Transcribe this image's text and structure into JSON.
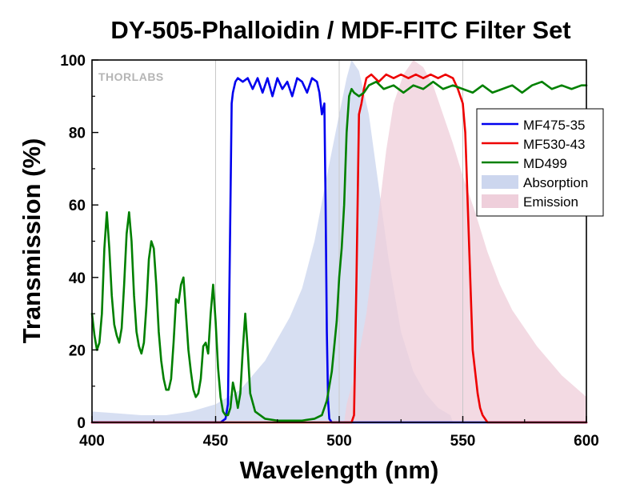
{
  "chart_data": {
    "type": "line",
    "title": "DY-505-Phalloidin / MDF-FITC Filter Set",
    "xlabel": "Wavelength (nm)",
    "ylabel": "Transmission (%)",
    "xlim": [
      400,
      600
    ],
    "ylim": [
      0,
      100
    ],
    "xticks": [
      400,
      450,
      500,
      550,
      600
    ],
    "yticks": [
      0,
      20,
      40,
      60,
      80,
      100
    ],
    "grid": true,
    "legend_position": "right",
    "watermark": "THORLABS",
    "colors": {
      "MF475-35": "#0000ee",
      "MF530-43": "#ee0000",
      "MD499": "#008000",
      "Absorption": "#ccd6ee",
      "Emission": "#efcfdb"
    },
    "series": [
      {
        "name": "MF475-35",
        "kind": "line",
        "points": [
          [
            400,
            0
          ],
          [
            452,
            0
          ],
          [
            454,
            1
          ],
          [
            455,
            5
          ],
          [
            456,
            60
          ],
          [
            456.5,
            88
          ],
          [
            457,
            91
          ],
          [
            458,
            94
          ],
          [
            459,
            95
          ],
          [
            461,
            94
          ],
          [
            463,
            95
          ],
          [
            465,
            92
          ],
          [
            467,
            95
          ],
          [
            469,
            91
          ],
          [
            471,
            95
          ],
          [
            473,
            90
          ],
          [
            475,
            95
          ],
          [
            477,
            92
          ],
          [
            479,
            94
          ],
          [
            481,
            90
          ],
          [
            483,
            95
          ],
          [
            485,
            94
          ],
          [
            487,
            91
          ],
          [
            489,
            95
          ],
          [
            491,
            94
          ],
          [
            492,
            91
          ],
          [
            493,
            85
          ],
          [
            494,
            88
          ],
          [
            494.5,
            60
          ],
          [
            495,
            25
          ],
          [
            495.5,
            6
          ],
          [
            496,
            1
          ],
          [
            497,
            0
          ],
          [
            600,
            0
          ]
        ]
      },
      {
        "name": "MF530-43",
        "kind": "line",
        "points": [
          [
            400,
            0
          ],
          [
            505,
            0
          ],
          [
            506,
            2
          ],
          [
            507,
            40
          ],
          [
            508,
            85
          ],
          [
            509,
            88
          ],
          [
            510,
            92
          ],
          [
            511,
            95
          ],
          [
            513,
            96
          ],
          [
            516,
            94
          ],
          [
            519,
            96
          ],
          [
            522,
            95
          ],
          [
            525,
            96
          ],
          [
            528,
            95
          ],
          [
            531,
            96
          ],
          [
            534,
            95
          ],
          [
            537,
            96
          ],
          [
            540,
            95
          ],
          [
            543,
            96
          ],
          [
            546,
            95
          ],
          [
            548,
            92
          ],
          [
            550,
            88
          ],
          [
            551,
            80
          ],
          [
            552,
            60
          ],
          [
            553,
            40
          ],
          [
            554,
            20
          ],
          [
            556,
            8
          ],
          [
            557,
            4
          ],
          [
            558,
            2
          ],
          [
            560,
            0
          ],
          [
            600,
            0
          ]
        ]
      },
      {
        "name": "MD499",
        "kind": "line",
        "points": [
          [
            400,
            30
          ],
          [
            401,
            24
          ],
          [
            402,
            20
          ],
          [
            403,
            22
          ],
          [
            404,
            30
          ],
          [
            405,
            48
          ],
          [
            406,
            58
          ],
          [
            407,
            48
          ],
          [
            408,
            35
          ],
          [
            409,
            27
          ],
          [
            410,
            24
          ],
          [
            411,
            22
          ],
          [
            412,
            26
          ],
          [
            413,
            38
          ],
          [
            414,
            52
          ],
          [
            415,
            58
          ],
          [
            416,
            50
          ],
          [
            417,
            35
          ],
          [
            418,
            25
          ],
          [
            419,
            21
          ],
          [
            420,
            19
          ],
          [
            421,
            22
          ],
          [
            422,
            32
          ],
          [
            423,
            45
          ],
          [
            424,
            50
          ],
          [
            425,
            48
          ],
          [
            426,
            38
          ],
          [
            427,
            25
          ],
          [
            428,
            17
          ],
          [
            429,
            12
          ],
          [
            430,
            9
          ],
          [
            431,
            9
          ],
          [
            432,
            12
          ],
          [
            433,
            22
          ],
          [
            434,
            34
          ],
          [
            435,
            33
          ],
          [
            436,
            38
          ],
          [
            437,
            40
          ],
          [
            438,
            30
          ],
          [
            439,
            20
          ],
          [
            440,
            14
          ],
          [
            441,
            9
          ],
          [
            442,
            7
          ],
          [
            443,
            8
          ],
          [
            444,
            12
          ],
          [
            445,
            21
          ],
          [
            446,
            22
          ],
          [
            447,
            19
          ],
          [
            448,
            30
          ],
          [
            449,
            38
          ],
          [
            450,
            28
          ],
          [
            451,
            15
          ],
          [
            452,
            7
          ],
          [
            453,
            3
          ],
          [
            454,
            2
          ],
          [
            455,
            2
          ],
          [
            456,
            4
          ],
          [
            457,
            11
          ],
          [
            458,
            8
          ],
          [
            459,
            4
          ],
          [
            460,
            8
          ],
          [
            461,
            20
          ],
          [
            462,
            30
          ],
          [
            463,
            20
          ],
          [
            464,
            8
          ],
          [
            466,
            3
          ],
          [
            470,
            1
          ],
          [
            475,
            0.5
          ],
          [
            485,
            0.5
          ],
          [
            490,
            1
          ],
          [
            493,
            2
          ],
          [
            495,
            6
          ],
          [
            497,
            14
          ],
          [
            499,
            28
          ],
          [
            500,
            40
          ],
          [
            501,
            48
          ],
          [
            502,
            60
          ],
          [
            503,
            80
          ],
          [
            504,
            90
          ],
          [
            505,
            92
          ],
          [
            506,
            91
          ],
          [
            508,
            90
          ],
          [
            510,
            91
          ],
          [
            512,
            93
          ],
          [
            515,
            94
          ],
          [
            518,
            92
          ],
          [
            522,
            93
          ],
          [
            526,
            91
          ],
          [
            530,
            93
          ],
          [
            534,
            92
          ],
          [
            538,
            94
          ],
          [
            542,
            92
          ],
          [
            546,
            93
          ],
          [
            550,
            92
          ],
          [
            554,
            91
          ],
          [
            558,
            93
          ],
          [
            562,
            91
          ],
          [
            566,
            92
          ],
          [
            570,
            93
          ],
          [
            574,
            91
          ],
          [
            578,
            93
          ],
          [
            582,
            94
          ],
          [
            586,
            92
          ],
          [
            590,
            93
          ],
          [
            594,
            92
          ],
          [
            598,
            93
          ],
          [
            600,
            93
          ]
        ]
      },
      {
        "name": "Absorption",
        "kind": "area",
        "points": [
          [
            400,
            3
          ],
          [
            410,
            2.5
          ],
          [
            420,
            2
          ],
          [
            430,
            2
          ],
          [
            440,
            3
          ],
          [
            450,
            5
          ],
          [
            460,
            9
          ],
          [
            470,
            17
          ],
          [
            480,
            29
          ],
          [
            485,
            37
          ],
          [
            490,
            50
          ],
          [
            495,
            68
          ],
          [
            500,
            85
          ],
          [
            503,
            95
          ],
          [
            505,
            100
          ],
          [
            508,
            97
          ],
          [
            512,
            85
          ],
          [
            516,
            65
          ],
          [
            520,
            45
          ],
          [
            525,
            25
          ],
          [
            530,
            14
          ],
          [
            535,
            8
          ],
          [
            540,
            4
          ],
          [
            545,
            2
          ],
          [
            546,
            0
          ]
        ]
      },
      {
        "name": "Emission",
        "kind": "area",
        "points": [
          [
            502,
            0
          ],
          [
            503,
            5
          ],
          [
            507,
            15
          ],
          [
            511,
            30
          ],
          [
            515,
            52
          ],
          [
            519,
            75
          ],
          [
            522,
            88
          ],
          [
            526,
            96
          ],
          [
            530,
            100
          ],
          [
            534,
            98
          ],
          [
            538,
            93
          ],
          [
            542,
            85
          ],
          [
            546,
            77
          ],
          [
            550,
            68
          ],
          [
            555,
            58
          ],
          [
            560,
            47
          ],
          [
            565,
            38
          ],
          [
            570,
            31
          ],
          [
            575,
            26
          ],
          [
            580,
            21
          ],
          [
            590,
            13
          ],
          [
            600,
            7
          ]
        ]
      }
    ]
  }
}
